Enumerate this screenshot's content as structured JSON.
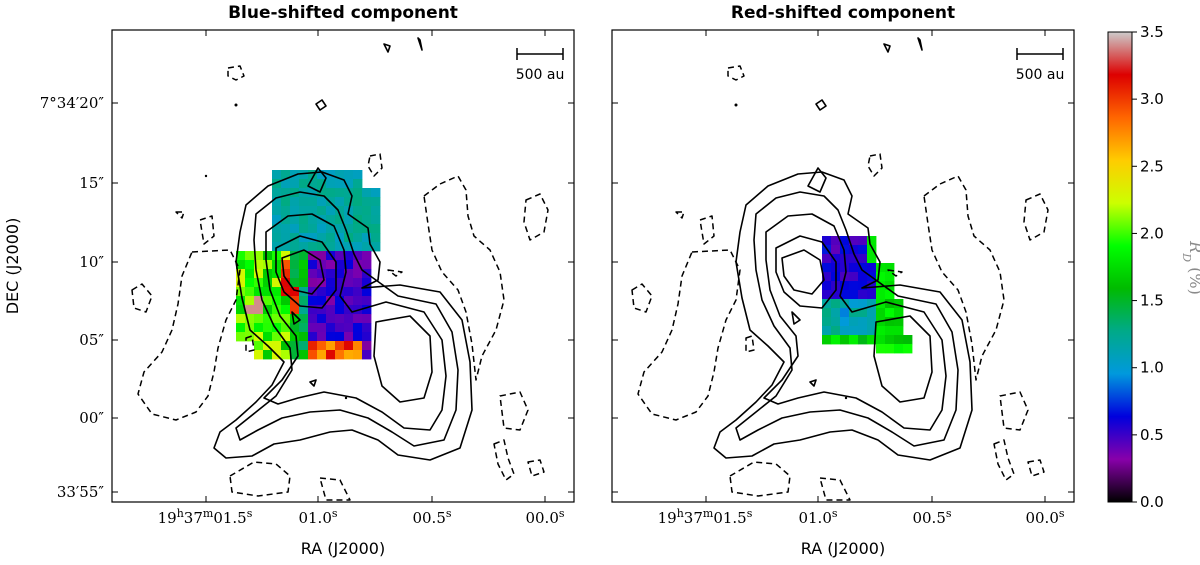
{
  "chart_data": [
    {
      "type": "heatmap",
      "title": "Blue-shifted component",
      "xlabel": "RA (J2000)",
      "ylabel": "DEC (J2000)",
      "x_ticks": [
        "19h37m01.5s",
        "01.0s",
        "00.5s",
        "00.0s"
      ],
      "y_ticks": [
        "7°34′20″",
        "15″",
        "10″",
        "05″",
        "00″",
        "33′55″"
      ],
      "scalebar_label": "500 au",
      "colormap": "nipy_spectral",
      "value_range": [
        0.0,
        3.5
      ],
      "value_label": "R_D (%)",
      "summary": {
        "west_arm": "R_D ~1.5-2.5 with peaks ~3.0",
        "central_core": "R_D ~0.3-0.6",
        "north_region": "R_D ~1.0-1.3",
        "southern_rim": "R_D ~2.5-3.2"
      }
    },
    {
      "type": "heatmap",
      "title": "Red-shifted component",
      "xlabel": "RA (J2000)",
      "ylabel": "DEC (J2000)",
      "x_ticks": [
        "19h37m01.5s",
        "01.0s",
        "00.5s",
        "00.0s"
      ],
      "scalebar_label": "500 au",
      "colormap": "nipy_spectral",
      "value_range": [
        0.0,
        3.5
      ],
      "value_label": "R_D (%)",
      "summary": {
        "north": "R_D ~0.4-0.6",
        "middle": "R_D ~1.0-1.3",
        "south_east": "R_D ~1.5-2.0"
      }
    }
  ],
  "colorbar": {
    "ticks": [
      "0.0",
      "0.5",
      "1.0",
      "1.5",
      "2.0",
      "2.5",
      "3.0",
      "3.5"
    ],
    "label": "R_D (%)",
    "stops": [
      "#000000",
      "#8800aa",
      "#0000dd",
      "#0099dd",
      "#00aa88",
      "#00bb00",
      "#00ff00",
      "#ccff00",
      "#ffcc00",
      "#ff6600",
      "#dd0000",
      "#cccccc"
    ]
  }
}
